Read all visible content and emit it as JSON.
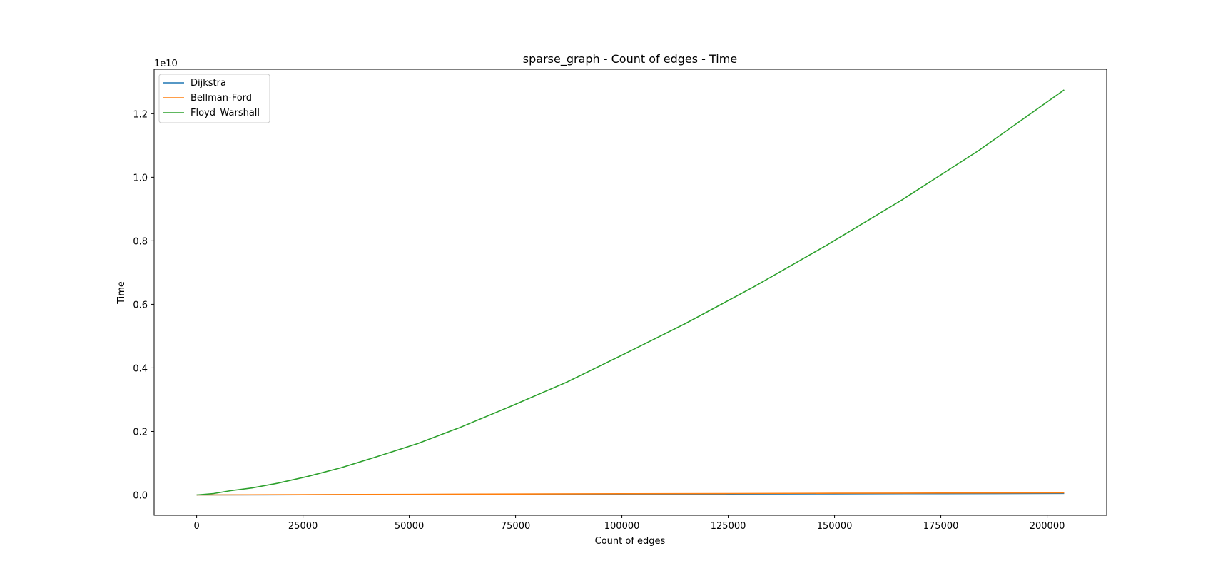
{
  "chart_data": {
    "type": "line",
    "title": "sparse_graph - Count of edges - Time",
    "xlabel": "Count of edges",
    "ylabel": "Time",
    "y_offset_label": "1e10",
    "xlim": [
      -10000,
      214000
    ],
    "ylim": [
      -0.064,
      1.34
    ],
    "x_ticks": [
      0,
      25000,
      50000,
      75000,
      100000,
      125000,
      150000,
      175000,
      200000
    ],
    "x_tick_labels": [
      "0",
      "25000",
      "50000",
      "75000",
      "100000",
      "125000",
      "150000",
      "175000",
      "200000"
    ],
    "y_ticks": [
      0.0,
      0.2,
      0.4,
      0.6,
      0.8,
      1.0,
      1.2
    ],
    "y_tick_labels": [
      "0.0",
      "0.2",
      "0.4",
      "0.6",
      "0.8",
      "1.0",
      "1.2"
    ],
    "grid": false,
    "legend_position": "top-left",
    "series": [
      {
        "name": "Dijkstra",
        "color": "#1f77b4",
        "x": [
          0,
          25000,
          50000,
          75000,
          100000,
          125000,
          150000,
          175000,
          204000
        ],
        "y": [
          0.0,
          0.0006,
          0.0012,
          0.0018,
          0.0024,
          0.003,
          0.0036,
          0.0042,
          0.0048
        ]
      },
      {
        "name": "Bellman-Ford",
        "color": "#ff7f0e",
        "x": [
          0,
          25000,
          50000,
          75000,
          100000,
          125000,
          150000,
          175000,
          204000
        ],
        "y": [
          0.0,
          0.001,
          0.002,
          0.003,
          0.0038,
          0.0045,
          0.0055,
          0.006,
          0.0068
        ]
      },
      {
        "name": "Floyd–Warshall",
        "color": "#2ca02c",
        "x": [
          0,
          4000,
          8000,
          13000,
          19000,
          26000,
          34000,
          42000,
          52000,
          62000,
          74000,
          87000,
          100000,
          115000,
          131000,
          148000,
          166000,
          184000,
          204000
        ],
        "y": [
          0.0,
          0.0045,
          0.0135,
          0.022,
          0.037,
          0.058,
          0.086,
          0.119,
          0.162,
          0.213,
          0.28,
          0.355,
          0.44,
          0.54,
          0.655,
          0.785,
          0.93,
          1.085,
          1.275
        ]
      }
    ]
  }
}
